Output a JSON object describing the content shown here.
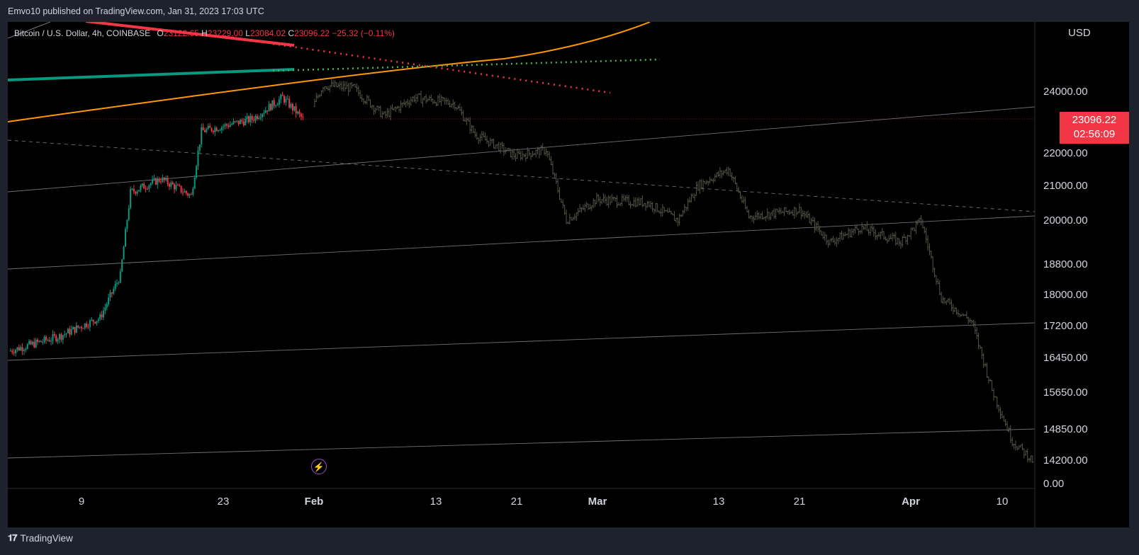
{
  "header": {
    "published": "Emvo10 published on TradingView.com, Jan 31, 2023 17:03 UTC"
  },
  "legend": {
    "symbol": "Bitcoin / U.S. Dollar, 4h, COINBASE",
    "o_label": "O",
    "o_value": "23122.65",
    "h_label": "H",
    "h_value": "23229.00",
    "l_label": "L",
    "l_value": "23084.02",
    "c_label": "C",
    "c_value": "23096.22",
    "change": "−25.32 (−0.11%)"
  },
  "price_axis": {
    "currency": "USD"
  },
  "price_tag": {
    "price": "23096.22",
    "countdown": "02:56:09",
    "color": "#f23645"
  },
  "footer": {
    "brand": "TradingView",
    "logo": "tradingview-logo-icon"
  },
  "chart_data": {
    "type": "candlestick",
    "symbol": "Bitcoin / U.S. Dollar",
    "interval": "4h",
    "exchange": "COINBASE",
    "y_ticks": [
      24000,
      22000,
      21000,
      20000,
      18800,
      18000,
      17200,
      16450,
      15650,
      14850,
      14200,
      0
    ],
    "y_tick_labels": [
      "24000.00",
      "22000.00",
      "21000.00",
      "20000.00",
      "18800.00",
      "18000.00",
      "17200.00",
      "16450.00",
      "15650.00",
      "14850.00",
      "14200.00",
      "0.00"
    ],
    "x_tick_labels": [
      "9",
      "23",
      "Feb",
      "13",
      "21",
      "Mar",
      "13",
      "21",
      "Apr",
      "10"
    ],
    "x_tick_bold": [
      false,
      false,
      true,
      false,
      false,
      true,
      false,
      false,
      true,
      false
    ],
    "last_price": 23096.22,
    "price_path": [
      {
        "x": "2023-01-02",
        "y": 16600
      },
      {
        "x": "2023-01-07",
        "y": 16950
      },
      {
        "x": "2023-01-11",
        "y": 17400
      },
      {
        "x": "2023-01-13",
        "y": 18500
      },
      {
        "x": "2023-01-14",
        "y": 20800
      },
      {
        "x": "2023-01-17",
        "y": 21200
      },
      {
        "x": "2023-01-20",
        "y": 20700
      },
      {
        "x": "2023-01-21",
        "y": 22700
      },
      {
        "x": "2023-01-26",
        "y": 23100
      },
      {
        "x": "2023-01-29",
        "y": 23800
      },
      {
        "x": "2023-01-31",
        "y": 23096
      }
    ],
    "projected_path": [
      {
        "x": "2023-02-01",
        "y": 23500
      },
      {
        "x": "2023-02-02",
        "y": 24200
      },
      {
        "x": "2023-02-05",
        "y": 24100
      },
      {
        "x": "2023-02-08",
        "y": 23200
      },
      {
        "x": "2023-02-11",
        "y": 23800
      },
      {
        "x": "2023-02-15",
        "y": 23600
      },
      {
        "x": "2023-02-17",
        "y": 22600
      },
      {
        "x": "2023-02-21",
        "y": 21900
      },
      {
        "x": "2023-02-24",
        "y": 22100
      },
      {
        "x": "2023-02-26",
        "y": 20000
      },
      {
        "x": "2023-03-01",
        "y": 20600
      },
      {
        "x": "2023-03-06",
        "y": 20500
      },
      {
        "x": "2023-03-09",
        "y": 20000
      },
      {
        "x": "2023-03-11",
        "y": 21000
      },
      {
        "x": "2023-03-14",
        "y": 21500
      },
      {
        "x": "2023-03-16",
        "y": 20100
      },
      {
        "x": "2023-03-21",
        "y": 20300
      },
      {
        "x": "2023-03-24",
        "y": 19400
      },
      {
        "x": "2023-03-27",
        "y": 19800
      },
      {
        "x": "2023-03-31",
        "y": 19400
      },
      {
        "x": "2023-04-02",
        "y": 20000
      },
      {
        "x": "2023-04-04",
        "y": 17900
      },
      {
        "x": "2023-04-07",
        "y": 17300
      },
      {
        "x": "2023-04-09",
        "y": 15700
      },
      {
        "x": "2023-04-11",
        "y": 14600
      },
      {
        "x": "2023-04-13",
        "y": 14200
      }
    ],
    "colors": {
      "up": "#089981",
      "down": "#f23645",
      "projection": "#555548",
      "orange_curve": "#ff9800",
      "teal_line": "#089981",
      "red_line": "#f23645"
    }
  }
}
